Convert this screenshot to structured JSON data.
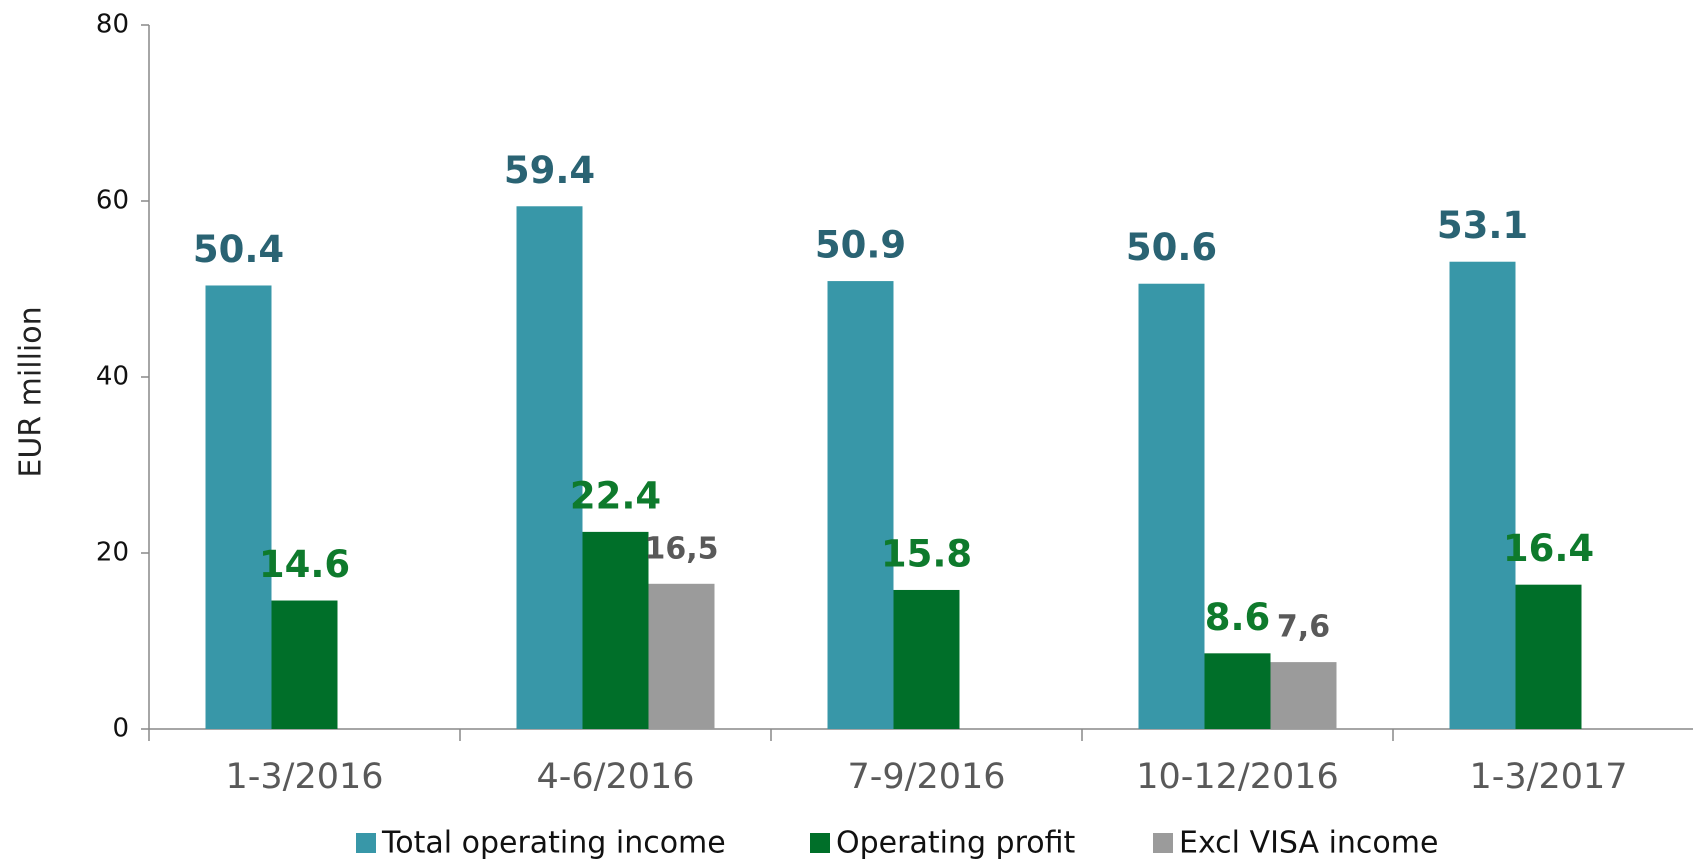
{
  "chart_data": {
    "type": "bar",
    "ylabel": "EUR million",
    "categories": [
      "1-3/2016",
      "4-6/2016",
      "7-9/2016",
      "10-12/2016",
      "1-3/2017"
    ],
    "series": [
      {
        "name": "Total operating income",
        "color": "#3897a8",
        "label_color": "#2a6373",
        "values": [
          50.4,
          59.4,
          50.9,
          50.6,
          53.1
        ]
      },
      {
        "name": "Operating profit",
        "color": "#006f29",
        "label_color": "#0e7a2c",
        "values": [
          14.6,
          22.4,
          15.8,
          8.6,
          16.4
        ]
      },
      {
        "name": "Excl VISA income",
        "color": "#9b9b9b",
        "label_color": "#595959",
        "values": [
          null,
          16.5,
          null,
          7.6,
          null
        ],
        "value_labels": [
          null,
          "16,5",
          null,
          "7,6",
          null
        ]
      }
    ],
    "ylim": [
      0,
      80
    ],
    "yticks": [
      0,
      20,
      40,
      60,
      80
    ],
    "grid": false,
    "legend": "bottom"
  }
}
